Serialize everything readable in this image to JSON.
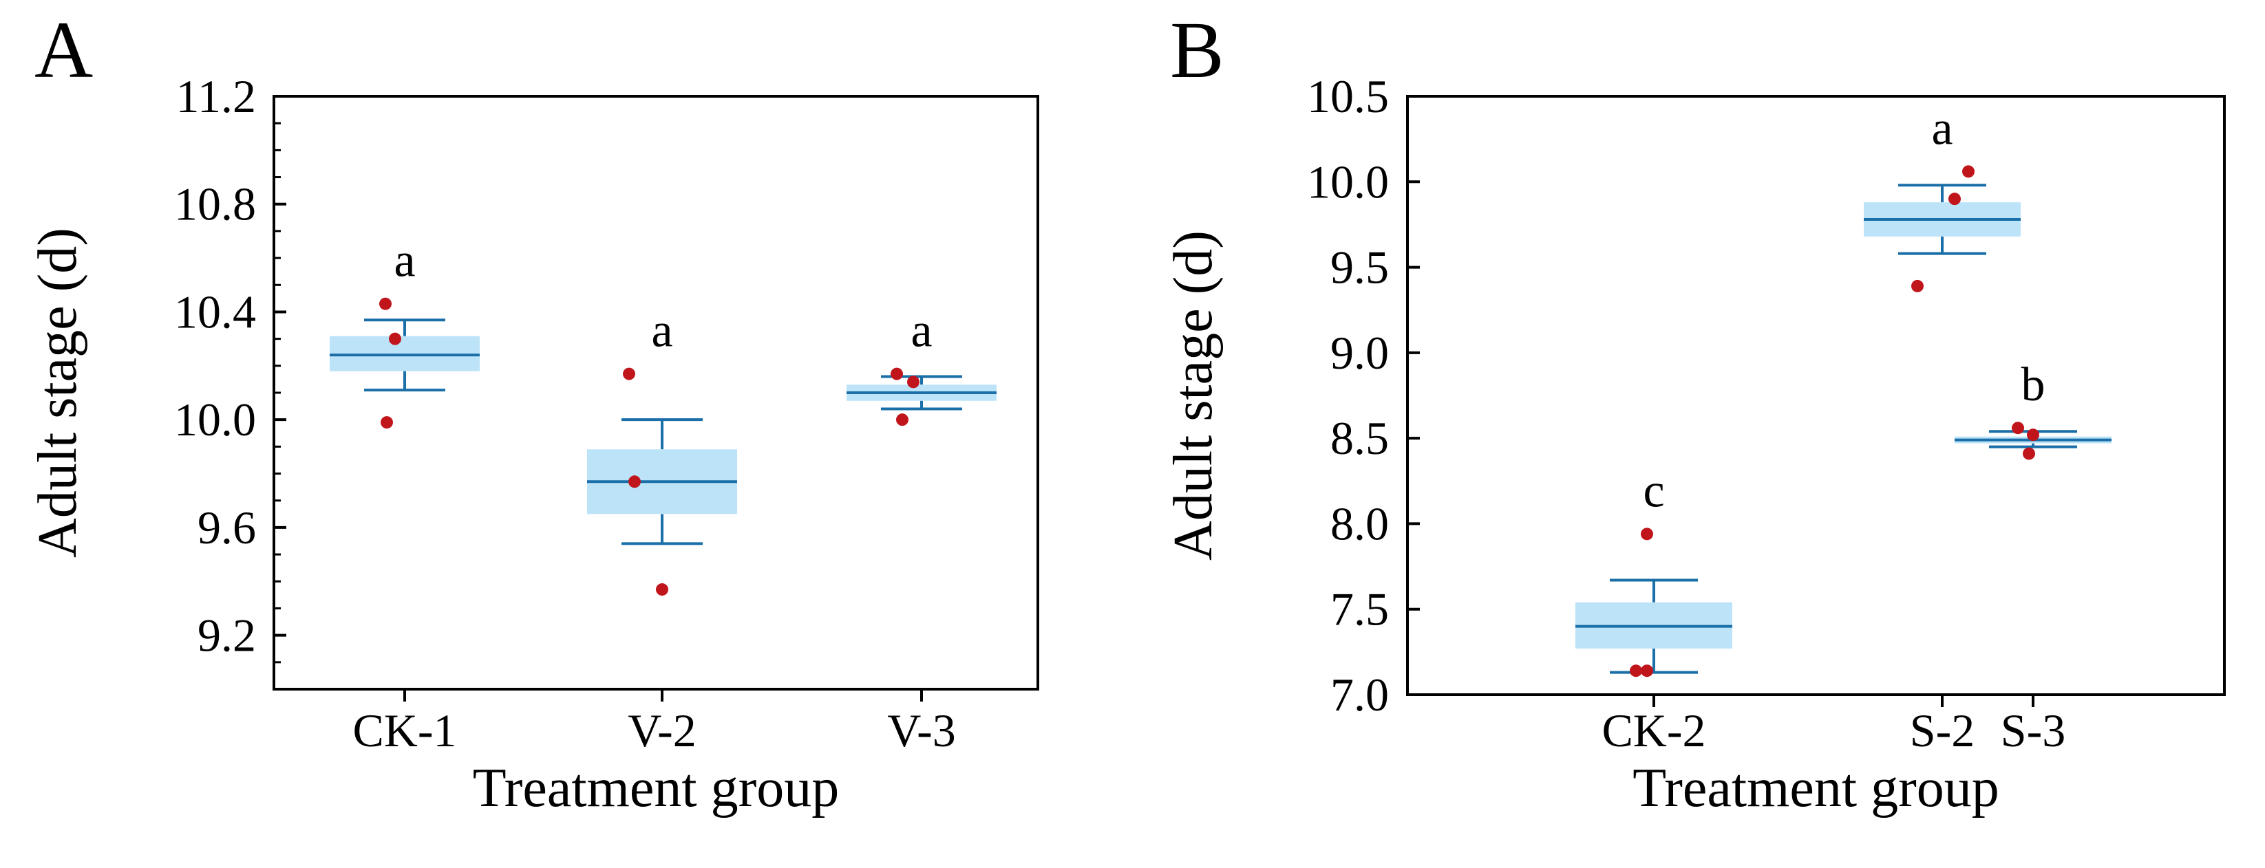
{
  "chart_data": [
    {
      "type": "box",
      "panel_label": "A",
      "xlabel": "Treatment group",
      "ylabel": "Adult stage (d)",
      "ylim": [
        9.0,
        11.2
      ],
      "yticks": [
        9.2,
        9.6,
        10.0,
        10.4,
        10.8,
        11.2
      ],
      "ytick_labels": [
        "9.2",
        "9.6",
        "10.0",
        "10.4",
        "10.8",
        "11.2"
      ],
      "yminor_step": 0.1,
      "categories": [
        "CK-1",
        "V-2",
        "V-3"
      ],
      "groups": [
        {
          "name": "CK-1",
          "whisker_low": 10.11,
          "q1": 10.18,
          "median": 10.24,
          "q3": 10.31,
          "whisker_high": 10.37,
          "points": [
            10.43,
            10.3,
            9.99
          ],
          "sig": "a"
        },
        {
          "name": "V-2",
          "whisker_low": 9.54,
          "q1": 9.65,
          "median": 9.77,
          "q3": 9.89,
          "whisker_high": 10.0,
          "points": [
            10.17,
            9.77,
            9.37
          ],
          "sig": "a"
        },
        {
          "name": "V-3",
          "whisker_low": 10.04,
          "q1": 10.07,
          "median": 10.1,
          "q3": 10.13,
          "whisker_high": 10.16,
          "points": [
            10.17,
            10.14,
            10.0
          ],
          "sig": "a"
        }
      ]
    },
    {
      "type": "box",
      "panel_label": "B",
      "xlabel": "Treatment group",
      "ylabel": "Adult stage (d)",
      "ylim": [
        7.0,
        10.5
      ],
      "yticks": [
        7.0,
        7.5,
        8.0,
        8.5,
        9.0,
        9.5,
        10.0,
        10.5
      ],
      "ytick_labels": [
        "7.0",
        "7.5",
        "8.0",
        "8.5",
        "9.0",
        "9.5",
        "10.0",
        "10.5"
      ],
      "yminor_step": null,
      "categories": [
        "CK-2",
        "S-2",
        "S-3"
      ],
      "groups": [
        {
          "name": "CK-2",
          "whisker_low": 7.13,
          "q1": 7.27,
          "median": 7.4,
          "q3": 7.54,
          "whisker_high": 7.67,
          "points": [
            7.94,
            7.14,
            7.14
          ],
          "sig": "c"
        },
        {
          "name": "S-2",
          "whisker_low": 9.58,
          "q1": 9.68,
          "median": 9.78,
          "q3": 9.88,
          "whisker_high": 9.98,
          "points": [
            10.06,
            9.9,
            9.39
          ],
          "sig": "a"
        },
        {
          "name": "S-3",
          "whisker_low": 8.45,
          "q1": 8.47,
          "median": 8.49,
          "q3": 8.51,
          "whisker_high": 8.54,
          "points": [
            8.56,
            8.52,
            8.41
          ],
          "sig": "b"
        }
      ]
    }
  ],
  "colors": {
    "box_fill": "#bde3f8",
    "box_line": "#1b6fa8",
    "point": "#c0151b",
    "axis": "#000000"
  }
}
